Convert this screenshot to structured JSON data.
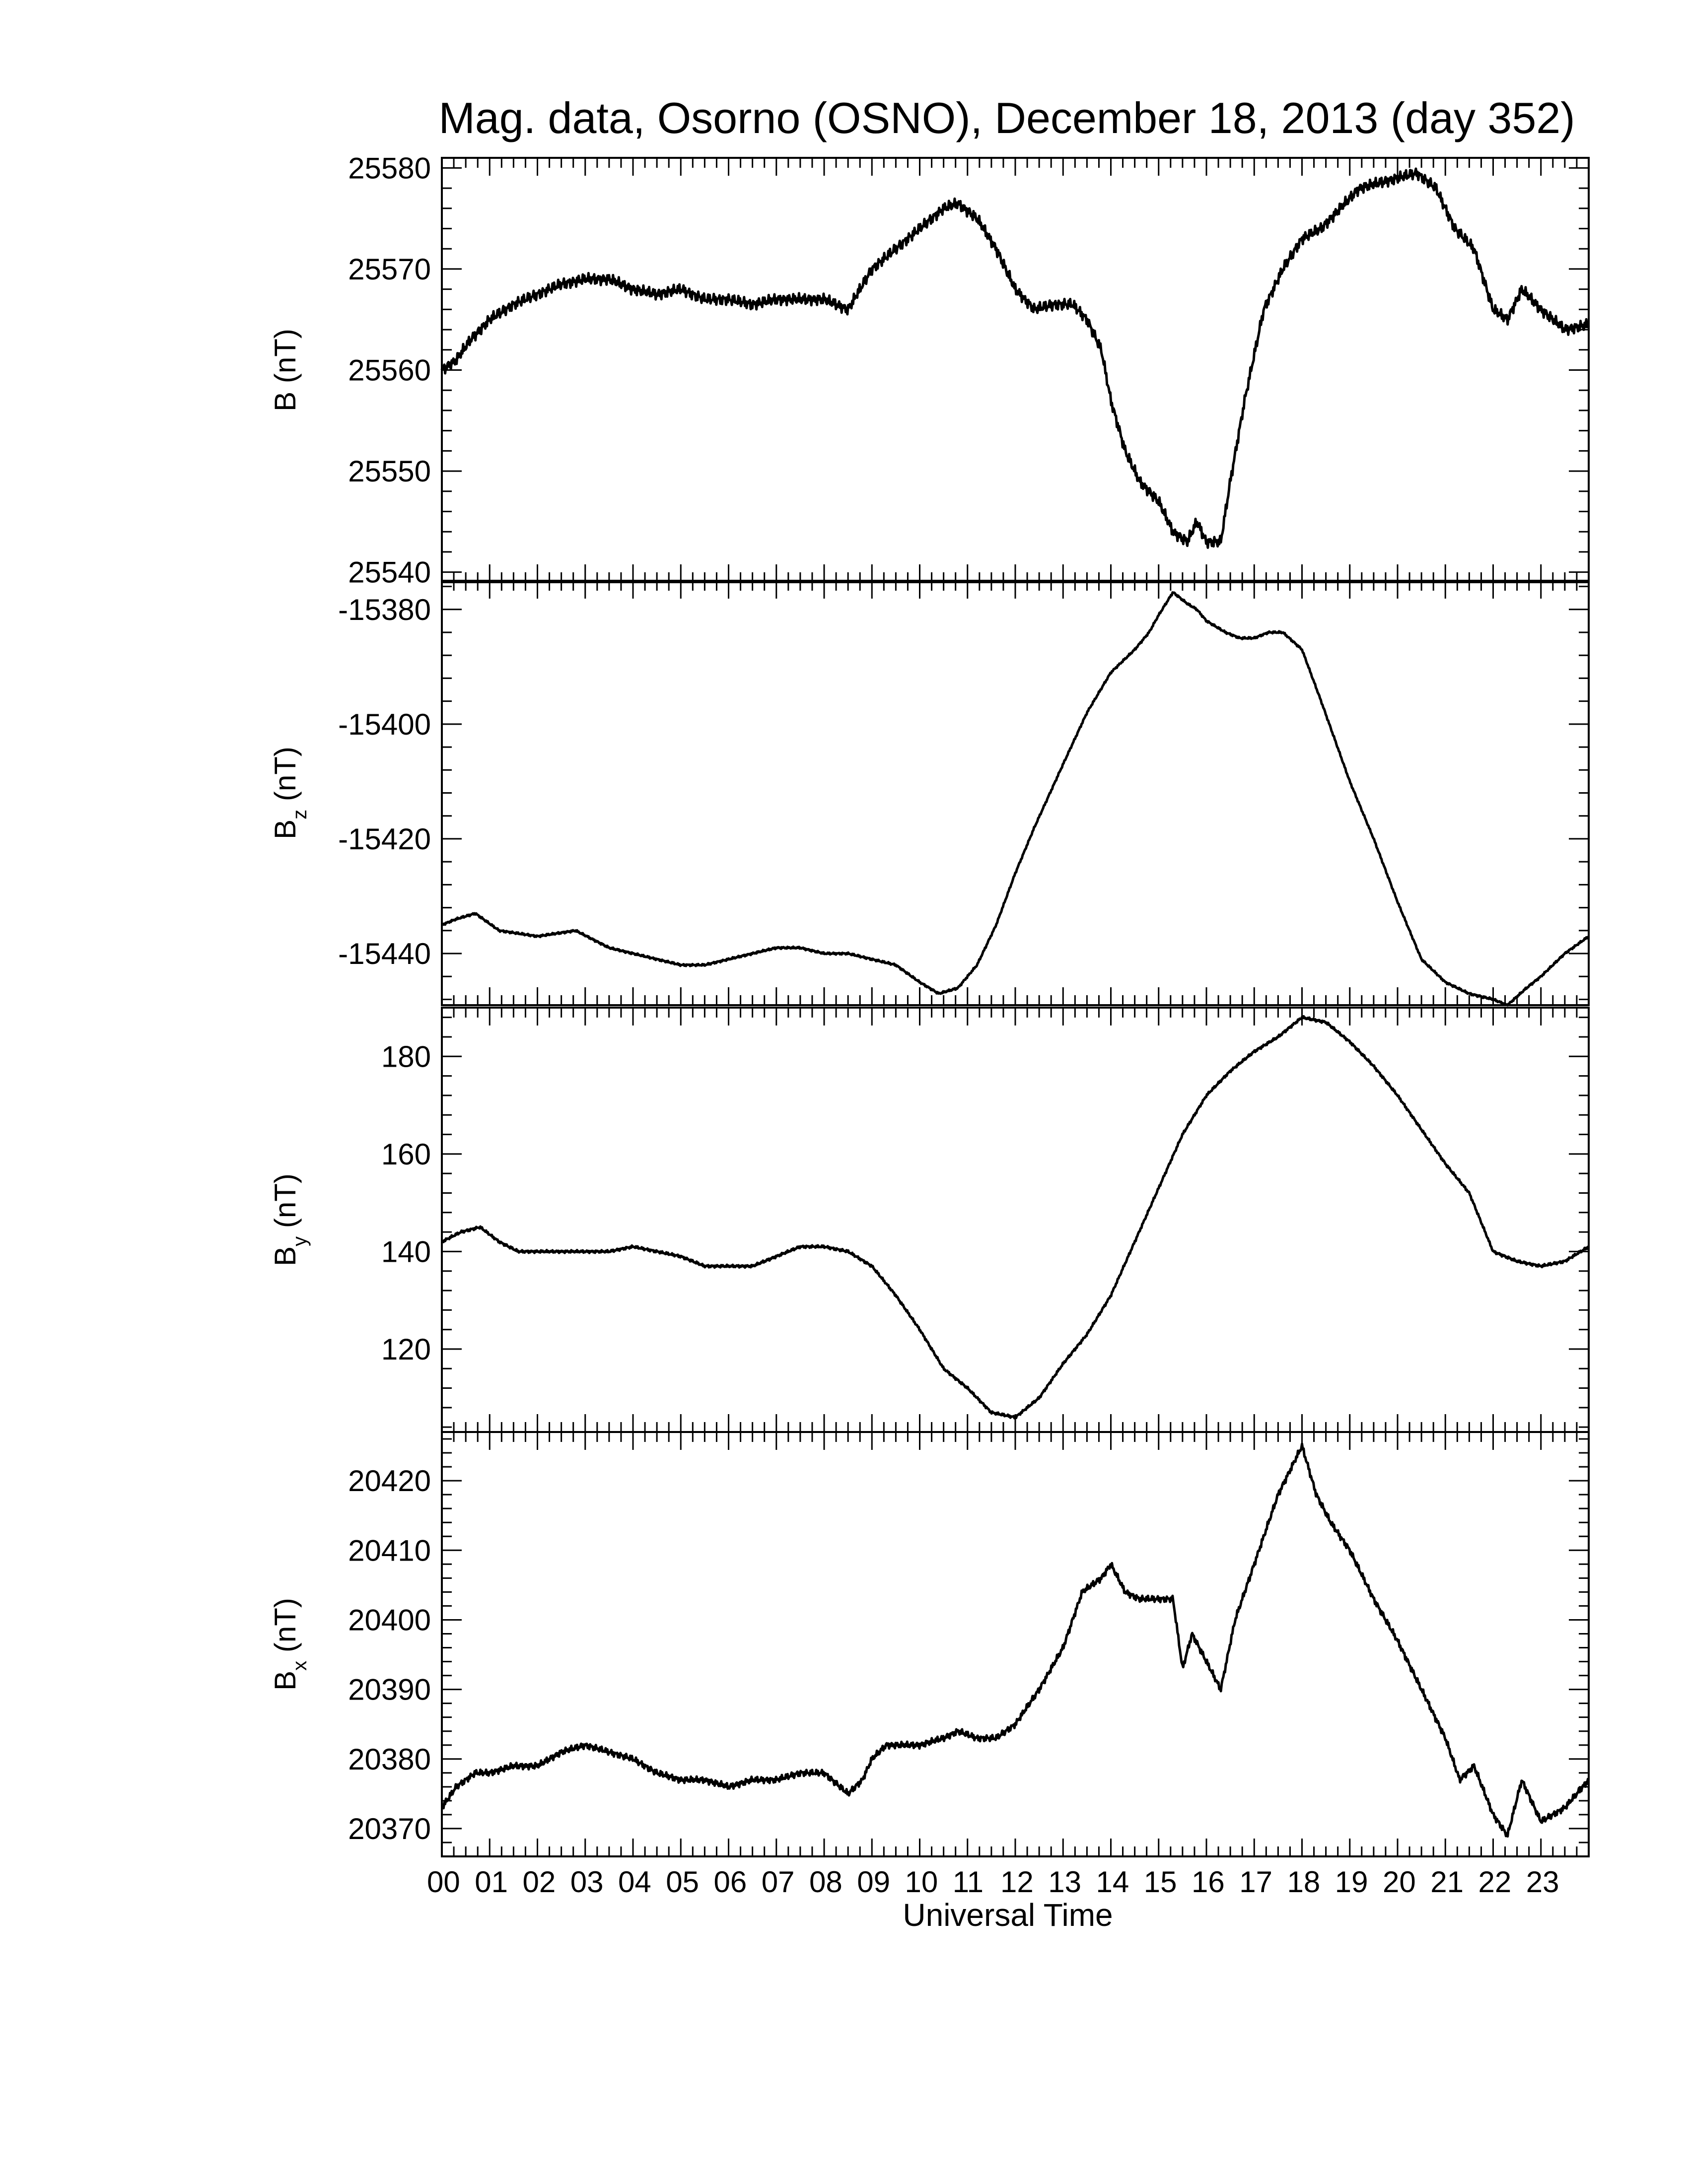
{
  "chart_data": {
    "type": "line",
    "title": "Mag. data, Osorno (OSNO), December 18, 2013 (day 352)",
    "xlabel": "Universal Time",
    "x_ticks": [
      "00",
      "01",
      "02",
      "03",
      "04",
      "05",
      "06",
      "07",
      "08",
      "09",
      "10",
      "11",
      "12",
      "13",
      "14",
      "15",
      "16",
      "17",
      "18",
      "19",
      "20",
      "21",
      "22",
      "23"
    ],
    "xlim": [
      0,
      24
    ],
    "panels": [
      {
        "ylabel": "B (nT)",
        "ylabel_main": "B",
        "ylabel_sub": "",
        "ylim": [
          25539,
          25581
        ],
        "yticks": [
          25540,
          25550,
          25560,
          25570,
          25580
        ],
        "noise": 0.6,
        "x": [
          0,
          0.3,
          0.6,
          1.0,
          1.5,
          2.0,
          2.5,
          3.0,
          3.5,
          4.0,
          4.5,
          5.0,
          5.5,
          6.0,
          6.5,
          7.0,
          7.5,
          8.0,
          8.5,
          9.0,
          9.5,
          10.0,
          10.5,
          10.8,
          11.2,
          11.6,
          12.0,
          12.4,
          12.8,
          13.2,
          13.5,
          13.8,
          14.0,
          14.3,
          14.6,
          15.0,
          15.3,
          15.6,
          15.8,
          16.0,
          16.3,
          16.5,
          16.8,
          17.2,
          17.6,
          18.0,
          18.4,
          18.8,
          19.2,
          19.6,
          20.0,
          20.4,
          20.8,
          21.2,
          21.6,
          22.0,
          22.3,
          22.6,
          23.0,
          23.5,
          24.0
        ],
        "y": [
          25560,
          25561,
          25563,
          25565,
          25566.5,
          25567.5,
          25568.5,
          25569,
          25569,
          25568,
          25567.5,
          25568,
          25567,
          25567,
          25566.5,
          25567,
          25567,
          25567,
          25566,
          25570,
          25572,
          25574,
          25576,
          25576.5,
          25575,
          25572,
          25568,
          25566,
          25566.5,
          25566.5,
          25565,
          25562,
          25557,
          25552,
          25549,
          25547,
          25544,
          25543,
          25545,
          25543,
          25543,
          25549,
          25557,
          25566,
          25570,
          25573,
          25574,
          25576,
          25578,
          25578.5,
          25579,
          25579.5,
          25578,
          25574,
          25572,
          25566,
          25565,
          25568,
          25566,
          25564,
          25564.5
        ]
      },
      {
        "ylabel": "B_z (nT)",
        "ylabel_main": "B",
        "ylabel_sub": "z",
        "ylim": [
          -15449,
          -15375
        ],
        "yticks": [
          -15380,
          -15400,
          -15420,
          -15440
        ],
        "noise": 0.2,
        "x": [
          0,
          0.3,
          0.7,
          1.2,
          2.0,
          2.8,
          3.5,
          4.5,
          5.0,
          5.5,
          6.0,
          6.5,
          7.0,
          7.5,
          8.0,
          8.5,
          9.0,
          9.5,
          10.0,
          10.4,
          10.8,
          11.2,
          11.6,
          12.0,
          12.4,
          13.0,
          13.5,
          14.0,
          14.5,
          14.8,
          15.0,
          15.3,
          15.6,
          15.8,
          16.0,
          16.4,
          16.7,
          17.0,
          17.3,
          17.6,
          18.0,
          18.4,
          19.0,
          19.5,
          20.0,
          20.5,
          21.0,
          21.5,
          22.0,
          22.3,
          22.7,
          23.0,
          23.5,
          24.0
        ],
        "y": [
          -15435,
          -15434,
          -15433,
          -15436,
          -15437,
          -15436,
          -15439,
          -15441,
          -15442,
          -15442,
          -15441,
          -15440,
          -15439,
          -15439,
          -15440,
          -15440,
          -15441,
          -15442,
          -15445,
          -15447,
          -15446,
          -15442,
          -15435,
          -15426,
          -15418,
          -15407,
          -15398,
          -15391,
          -15387,
          -15384,
          -15381,
          -15377,
          -15379,
          -15380,
          -15382,
          -15384,
          -15385,
          -15385,
          -15384,
          -15384,
          -15387,
          -15396,
          -15410,
          -15420,
          -15431,
          -15441,
          -15445,
          -15447,
          -15448,
          -15449,
          -15446,
          -15444,
          -15440,
          -15437
        ]
      },
      {
        "ylabel": "B_y (nT)",
        "ylabel_main": "B",
        "ylabel_sub": "y",
        "ylim": [
          103,
          190
        ],
        "yticks": [
          120,
          140,
          160,
          180
        ],
        "noise": 0.3,
        "x": [
          0,
          0.4,
          0.8,
          1.2,
          1.6,
          2.0,
          2.5,
          3.0,
          3.5,
          4.0,
          4.5,
          5.0,
          5.5,
          6.0,
          6.5,
          7.0,
          7.5,
          8.0,
          8.5,
          9.0,
          9.5,
          10.0,
          10.5,
          11.0,
          11.5,
          12.0,
          12.5,
          13.0,
          13.5,
          14.0,
          14.5,
          15.0,
          15.5,
          16.0,
          16.5,
          17.0,
          17.5,
          18.0,
          18.5,
          19.0,
          19.5,
          20.0,
          20.5,
          21.0,
          21.5,
          22.0,
          22.5,
          23.0,
          23.5,
          24.0
        ],
        "y": [
          142,
          144,
          145,
          142,
          140,
          140,
          140,
          140,
          140,
          141,
          140,
          139,
          137,
          137,
          137,
          139,
          141,
          141,
          140,
          137,
          131,
          124,
          116,
          112,
          107,
          106,
          110,
          117,
          123,
          131,
          142,
          153,
          164,
          172,
          177,
          181,
          184,
          188,
          187,
          183,
          178,
          172,
          165,
          158,
          152,
          140,
          138,
          137,
          138,
          141
        ]
      },
      {
        "ylabel": "B_x (nT)",
        "ylabel_main": "B",
        "ylabel_sub": "x",
        "ylim": [
          20366,
          20427
        ],
        "yticks": [
          20370,
          20380,
          20390,
          20400,
          20410,
          20420
        ],
        "noise": 0.5,
        "x": [
          0,
          0.3,
          0.7,
          1.0,
          1.5,
          2.0,
          2.5,
          3.0,
          3.5,
          4.0,
          4.5,
          5.0,
          5.5,
          6.0,
          6.5,
          7.0,
          7.5,
          8.0,
          8.5,
          8.8,
          9.0,
          9.3,
          9.7,
          10.0,
          10.5,
          10.8,
          11.2,
          11.6,
          12.0,
          12.5,
          13.0,
          13.4,
          13.8,
          14.0,
          14.3,
          14.6,
          15.0,
          15.3,
          15.5,
          15.7,
          16.0,
          16.3,
          16.6,
          17.0,
          17.5,
          18.0,
          18.3,
          18.6,
          19.0,
          19.5,
          20.0,
          20.5,
          21.0,
          21.3,
          21.6,
          22.0,
          22.3,
          22.6,
          23.0,
          23.5,
          24.0
        ],
        "y": [
          20373,
          20376,
          20378,
          20378,
          20379,
          20379,
          20381,
          20382,
          20381,
          20380,
          20378,
          20377,
          20377,
          20376,
          20377,
          20377,
          20378,
          20378,
          20375,
          20377,
          20380,
          20382,
          20382,
          20382,
          20383,
          20384,
          20383,
          20383,
          20385,
          20390,
          20396,
          20404,
          20406,
          20408,
          20404,
          20403,
          20403,
          20403,
          20393,
          20398,
          20394,
          20390,
          20400,
          20408,
          20418,
          20425,
          20418,
          20414,
          20410,
          20403,
          20397,
          20390,
          20383,
          20377,
          20379,
          20372,
          20369,
          20377,
          20371,
          20373,
          20377
        ]
      }
    ]
  }
}
